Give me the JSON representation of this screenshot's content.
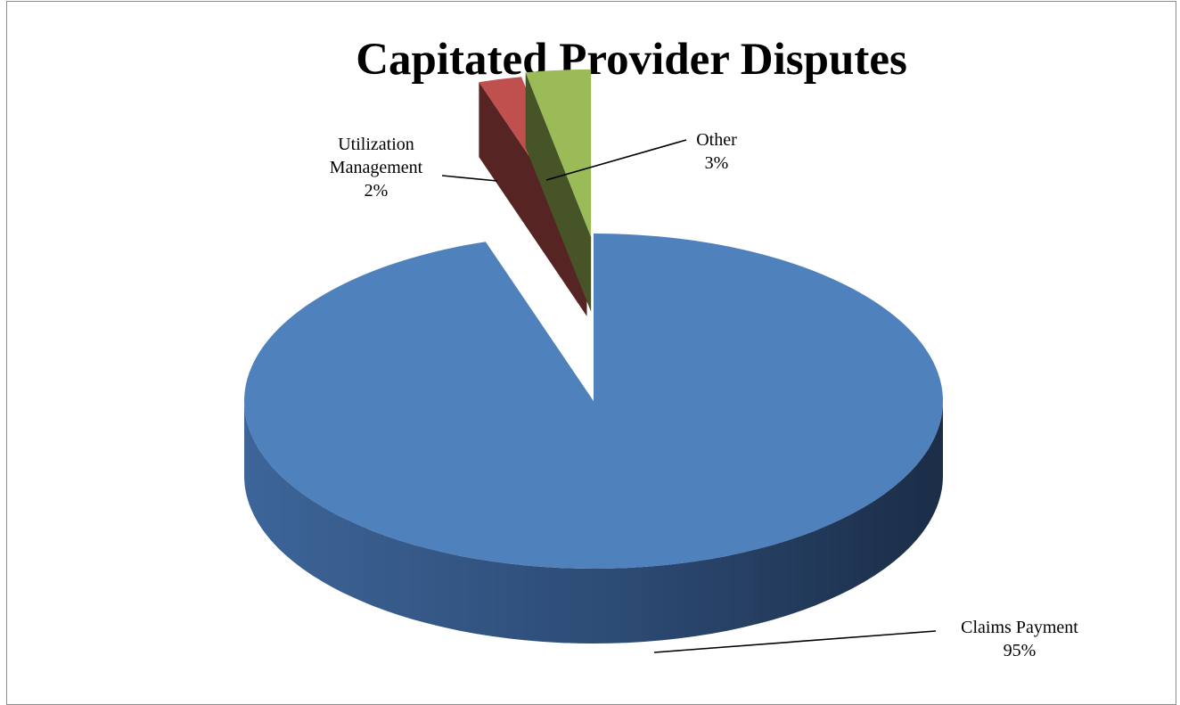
{
  "chart_data": {
    "type": "pie",
    "title": "Capitated Provider Disputes",
    "categories": [
      "Claims Payment",
      "Utilization Management",
      "Other"
    ],
    "values": [
      95,
      2,
      3
    ],
    "value_format": "percent",
    "exploded": [
      "Utilization Management",
      "Other"
    ],
    "style": "3d",
    "colors": [
      "#4f81bd",
      "#c0504d",
      "#9bbb59"
    ],
    "data_labels": [
      {
        "category_lines": [
          "Claims Payment"
        ],
        "value": "95%"
      },
      {
        "category_lines": [
          "Utilization",
          "Management"
        ],
        "value": "2%"
      },
      {
        "category_lines": [
          "Other"
        ],
        "value": "3%"
      }
    ],
    "legend": "none"
  }
}
